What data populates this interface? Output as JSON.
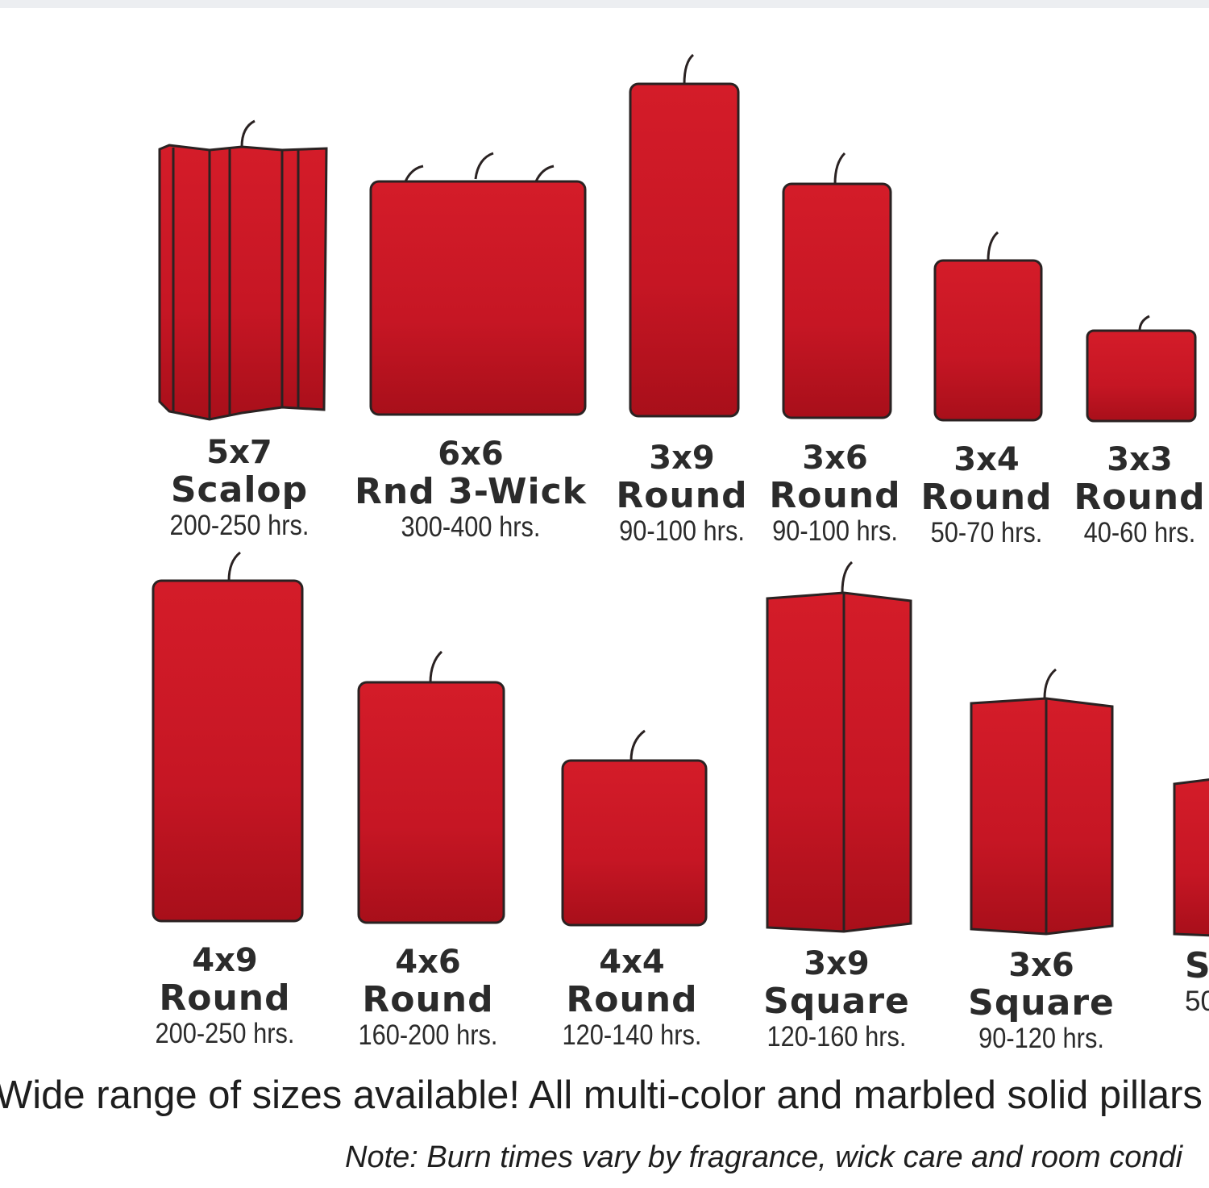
{
  "colors": {
    "candle": "#d41c29",
    "candle_dark": "#a80f1a",
    "outline": "#2a2222",
    "text": "#2b2b2b"
  },
  "row1": [
    {
      "size": "5x7",
      "name": "Scalop",
      "hours": "200-250 hrs."
    },
    {
      "size": "6x6",
      "name": "Rnd 3-Wick",
      "hours": "300-400 hrs."
    },
    {
      "size": "3x9",
      "name": "Round",
      "hours": "90-100 hrs."
    },
    {
      "size": "3x6",
      "name": "Round",
      "hours": "90-100 hrs."
    },
    {
      "size": "3x4",
      "name": "Round",
      "hours": "50-70 hrs."
    },
    {
      "size": "3x3",
      "name": "Round",
      "hours": "40-60 hrs."
    }
  ],
  "row2": [
    {
      "size": "4x9",
      "name": "Round",
      "hours": "200-250 hrs."
    },
    {
      "size": "4x6",
      "name": "Round",
      "hours": "160-200 hrs."
    },
    {
      "size": "4x4",
      "name": "Round",
      "hours": "120-140 hrs."
    },
    {
      "size": "3x9",
      "name": "Square",
      "hours": "120-160 hrs."
    },
    {
      "size": "3x6",
      "name": "Square",
      "hours": "90-120 hrs."
    },
    {
      "size": "",
      "name": "Sc",
      "hours": "50"
    }
  ],
  "footer": {
    "text": "Wide range of sizes available! All multi-color and marbled solid pillars",
    "note": "Note: Burn times vary by fragrance, wick care and room condi"
  }
}
